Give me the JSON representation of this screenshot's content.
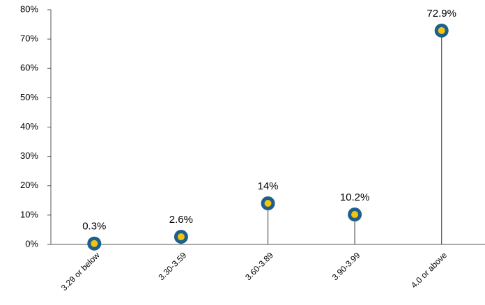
{
  "chart_data": {
    "type": "lollipop",
    "categories": [
      "3.29 or below",
      "3.30-3.59",
      "3.60-3.89",
      "3.90-3.99",
      "4.0 or above"
    ],
    "values": [
      0.3,
      2.6,
      14,
      10.2,
      72.9
    ],
    "value_labels": [
      "0.3%",
      "2.6%",
      "14%",
      "10.2%",
      "72.9%"
    ],
    "color": "#1f5f8b",
    "marker_fill": "#f2c40f",
    "stem_color": "#555555",
    "ylim": [
      0,
      80
    ],
    "yticks": [
      {
        "value": 0,
        "label": "0%"
      },
      {
        "value": 10,
        "label": "10%"
      },
      {
        "value": 20,
        "label": "20%"
      },
      {
        "value": 30,
        "label": "30%"
      },
      {
        "value": 40,
        "label": "40%"
      },
      {
        "value": 50,
        "label": "50%"
      },
      {
        "value": 60,
        "label": "60%"
      },
      {
        "value": 70,
        "label": "70%"
      },
      {
        "value": 80,
        "label": "80%"
      }
    ],
    "grid": false
  }
}
